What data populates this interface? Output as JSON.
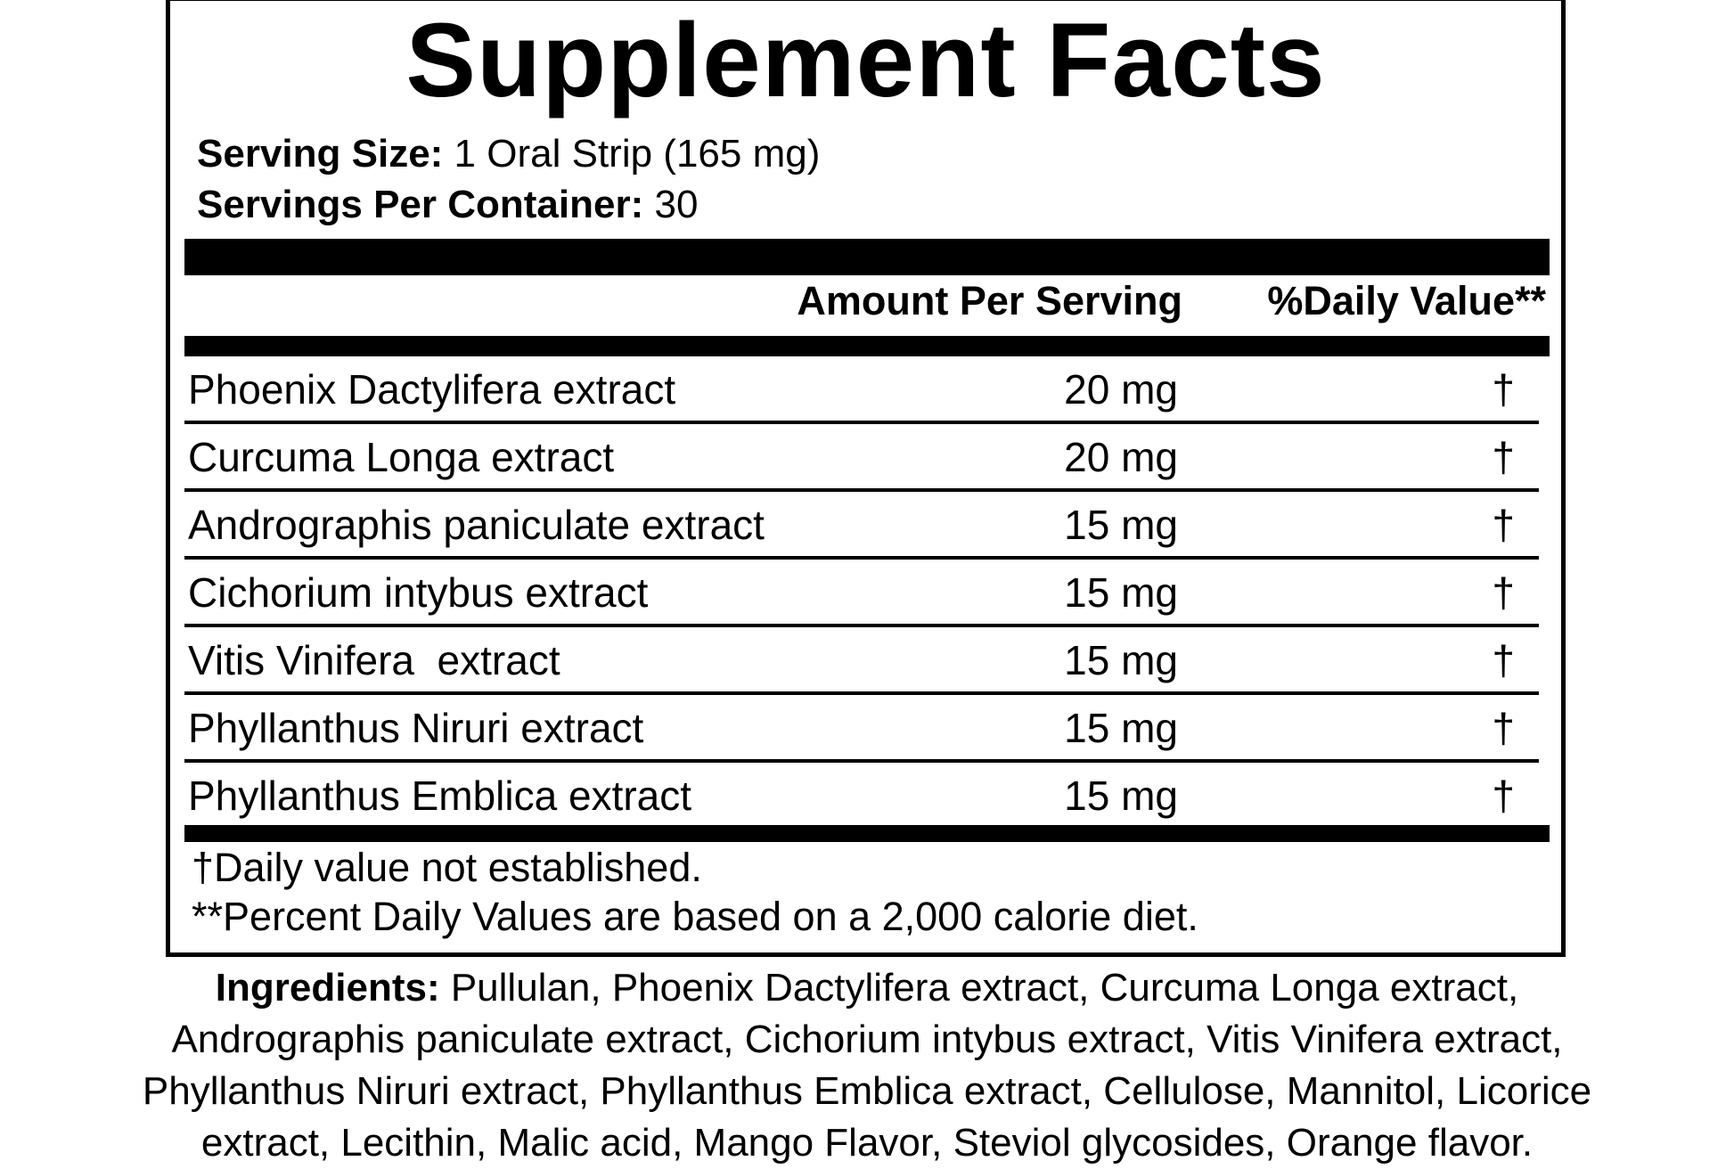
{
  "title": "Supplement Facts",
  "serving_size": {
    "label": "Serving Size:",
    "value": "1 Oral Strip (165 mg)"
  },
  "servings_per_container": {
    "label": "Servings Per Container:",
    "value": "30"
  },
  "header": {
    "amount": "Amount Per Serving",
    "daily_value": "%Daily Value**"
  },
  "rows": [
    {
      "name": "Phoenix Dactylifera extract",
      "amount": "20 mg",
      "dv": "†"
    },
    {
      "name": "Curcuma Longa extract",
      "amount": "20 mg",
      "dv": "†"
    },
    {
      "name": "Andrographis paniculate extract",
      "amount": "15 mg",
      "dv": "†"
    },
    {
      "name": "Cichorium intybus extract",
      "amount": "15 mg",
      "dv": "†"
    },
    {
      "name": "Vitis Vinifera  extract",
      "amount": "15 mg",
      "dv": "†"
    },
    {
      "name": "Phyllanthus Niruri extract",
      "amount": "15 mg",
      "dv": "†"
    },
    {
      "name": "Phyllanthus Emblica extract",
      "amount": "15 mg",
      "dv": "†"
    }
  ],
  "footnotes": [
    "†Daily value not established.",
    "**Percent Daily Values are based on a 2,000 calorie diet."
  ],
  "ingredients": {
    "label": "Ingredients:",
    "lines": [
      " Pullulan, Phoenix Dactylifera extract, Curcuma Longa extract,",
      "Andrographis paniculate extract, Cichorium intybus extract, Vitis Vinifera extract,",
      "Phyllanthus Niruri extract, Phyllanthus Emblica extract, Cellulose, Mannitol, Licorice",
      "extract, Lecithin, Malic acid, Mango Flavor, Steviol glycosides, Orange flavor."
    ]
  }
}
